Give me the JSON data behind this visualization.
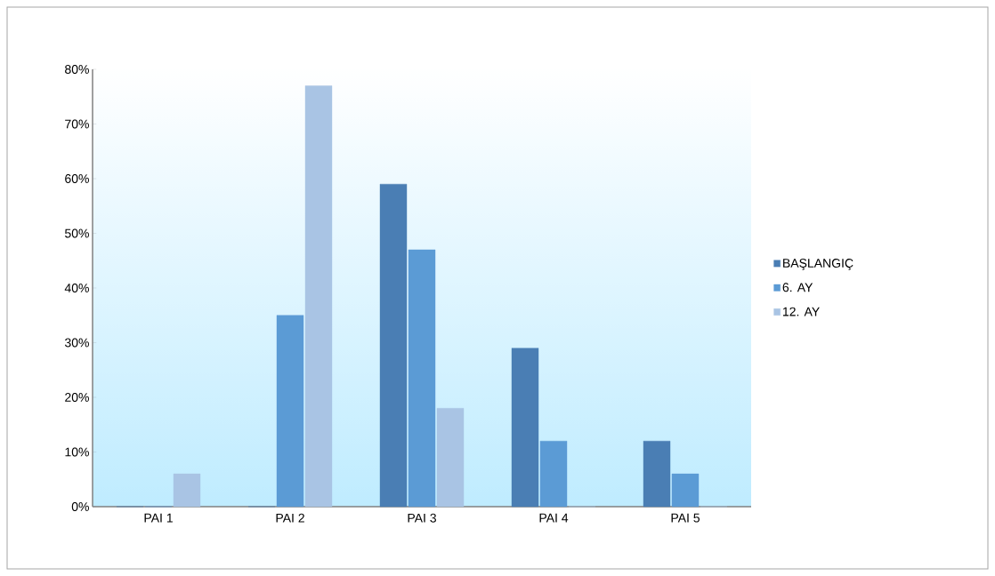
{
  "chart_data": {
    "type": "bar",
    "categories": [
      "PAI 1",
      "PAI 2",
      "PAI 3",
      "PAI 4",
      "PAI 5"
    ],
    "series": [
      {
        "name": "BAŞLANGIÇ",
        "color": "#4a7eb4",
        "values": [
          0,
          0,
          59,
          29,
          12
        ]
      },
      {
        "name": "6. AY",
        "color": "#5b9bd5",
        "values": [
          0,
          35,
          47,
          12,
          6
        ]
      },
      {
        "name": "12. AY",
        "color": "#a9c4e4",
        "values": [
          6,
          77,
          18,
          0,
          0
        ]
      }
    ],
    "ylim": [
      0,
      80
    ],
    "yticks": [
      {
        "value": 0,
        "label": "0%"
      },
      {
        "value": 10,
        "label": "10%"
      },
      {
        "value": 20,
        "label": "20%"
      },
      {
        "value": 30,
        "label": "30%"
      },
      {
        "value": 40,
        "label": "40%"
      },
      {
        "value": 50,
        "label": "50%"
      },
      {
        "value": 60,
        "label": "60%"
      },
      {
        "value": 70,
        "label": "70%"
      },
      {
        "value": 80,
        "label": "80%"
      }
    ],
    "grid": false,
    "legend": "right"
  }
}
